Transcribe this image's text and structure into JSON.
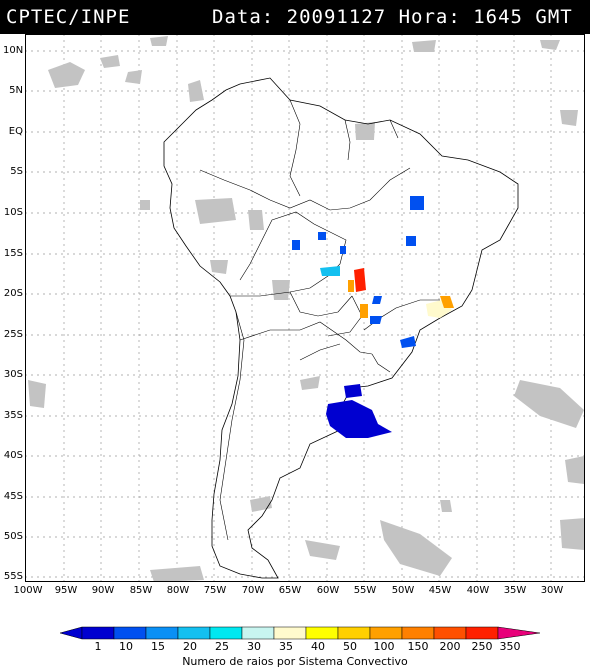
{
  "header": {
    "source": "CPTEC/INPE",
    "datetime": "Data: 20091127 Hora: 1645 GMT"
  },
  "lat_labels": [
    "10N",
    "5N",
    "EQ",
    "5S",
    "10S",
    "15S",
    "20S",
    "25S",
    "30S",
    "35S",
    "40S",
    "45S",
    "50S",
    "55S"
  ],
  "lon_labels": [
    "100W",
    "95W",
    "90W",
    "85W",
    "80W",
    "75W",
    "70W",
    "65W",
    "60W",
    "55W",
    "50W",
    "45W",
    "40W",
    "35W",
    "30W"
  ],
  "colorbar": {
    "ticks": [
      "1",
      "10",
      "15",
      "20",
      "25",
      "30",
      "35",
      "40",
      "50",
      "100",
      "150",
      "200",
      "250",
      "350"
    ],
    "colors": [
      "#0000d0",
      "#0050f0",
      "#0a90f5",
      "#14c0f0",
      "#00e8f0",
      "#c8f5f0",
      "#fffacd",
      "#ffff00",
      "#ffd000",
      "#ffa000",
      "#ff8000",
      "#ff5000",
      "#ff2000",
      "#e8007a"
    ],
    "caption": "Numero de raios por Sistema Convectivo"
  },
  "colors": {
    "frame": "#000000",
    "clouds": "#c0c0c0",
    "land_border": "#000000",
    "grid": "#999999"
  }
}
